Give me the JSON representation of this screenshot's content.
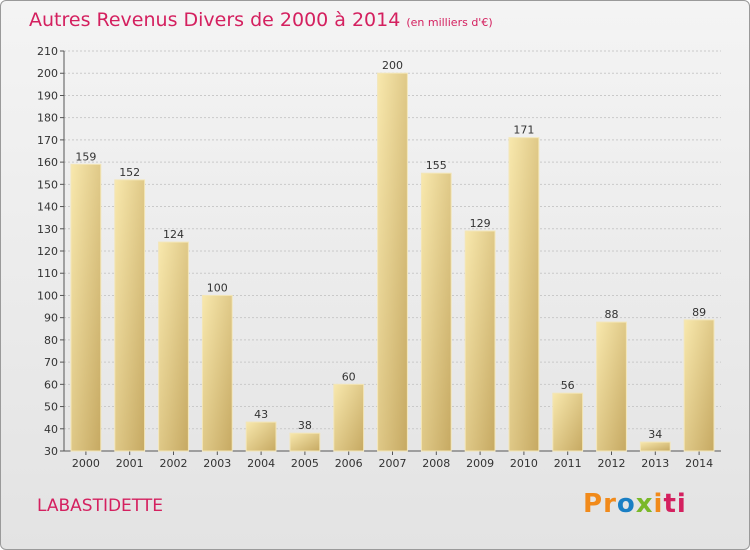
{
  "header": {
    "title": "Autres Revenus Divers de 2000 à 2014",
    "unit": "(en milliers d'€)"
  },
  "footer": {
    "commune": "LABASTIDETTE",
    "logo_text": "Proxiti",
    "logo_colors": [
      "#f18a1a",
      "#f18a1a",
      "#1a7fc4",
      "#7ab829",
      "#f18a1a",
      "#d4205f"
    ]
  },
  "colors": {
    "accent": "#d4205f",
    "bar_light": "#f6e4a4",
    "bar_dark": "#c4a75e"
  },
  "chart_data": {
    "type": "bar",
    "categories": [
      "2000",
      "2001",
      "2002",
      "2003",
      "2004",
      "2005",
      "2006",
      "2007",
      "2008",
      "2009",
      "2010",
      "2011",
      "2012",
      "2013",
      "2014"
    ],
    "values": [
      159,
      152,
      124,
      100,
      43,
      38,
      60,
      200,
      155,
      129,
      171,
      56,
      88,
      34,
      89
    ],
    "title": "Autres Revenus Divers de 2000 à 2014",
    "ylim": [
      30,
      210
    ],
    "yticks": [
      30,
      40,
      50,
      60,
      70,
      80,
      90,
      100,
      110,
      120,
      130,
      140,
      150,
      160,
      170,
      180,
      190,
      200,
      210
    ],
    "grid": true
  }
}
